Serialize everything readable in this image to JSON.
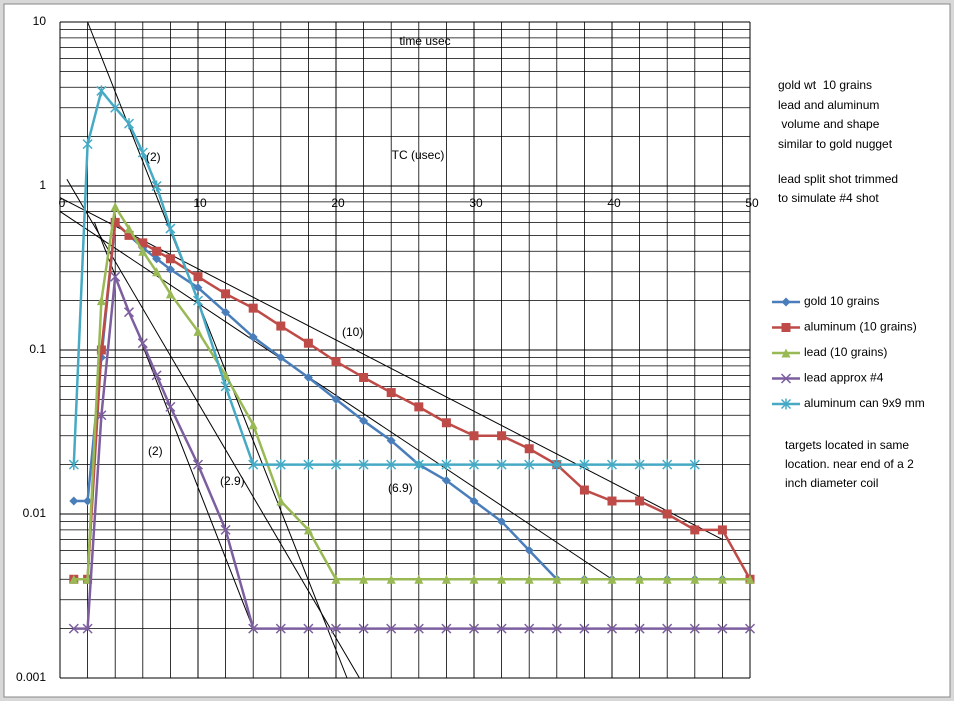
{
  "chart_data": {
    "type": "line",
    "title": "time usec",
    "x_label": "TC (usec)",
    "log_y": true,
    "grid": true,
    "legend": "right",
    "xlim": [
      0,
      50
    ],
    "ylim": [
      0.001,
      10
    ],
    "xticks": [
      0,
      10,
      20,
      30,
      40,
      50
    ],
    "yticks": [
      10,
      1,
      0.1,
      0.01,
      0.001
    ],
    "xgrid": [
      2,
      4,
      6,
      8,
      12,
      14,
      16,
      18,
      22,
      24,
      26,
      28,
      32,
      34,
      36,
      38,
      42,
      44,
      46,
      48
    ],
    "ygrid": [
      0.002,
      0.003,
      0.004,
      0.005,
      0.006,
      0.007,
      0.008,
      0.009,
      0.02,
      0.03,
      0.04,
      0.05,
      0.06,
      0.07,
      0.08,
      0.09,
      0.2,
      0.3,
      0.4,
      0.5,
      0.6,
      0.7,
      0.8,
      0.9,
      2,
      3,
      4,
      5,
      6,
      7,
      8,
      9
    ],
    "x": [
      1,
      2,
      3,
      4,
      5,
      6,
      7,
      8,
      10,
      12,
      14,
      16,
      18,
      20,
      22,
      24,
      26,
      28,
      30,
      32,
      34,
      36,
      38,
      40,
      42,
      44,
      46,
      48,
      50
    ],
    "series": [
      {
        "name": "gold 10 grains",
        "color": "#4a7ebb",
        "marker": "diamond",
        "values": [
          0.012,
          0.012,
          0.09,
          0.6,
          0.5,
          0.42,
          0.36,
          0.31,
          0.24,
          0.17,
          0.12,
          0.09,
          0.068,
          0.05,
          0.037,
          0.028,
          0.02,
          0.016,
          0.012,
          0.009,
          0.006,
          0.004,
          0.004,
          0.004,
          0.004,
          0.004,
          0.004,
          0.004,
          0.004
        ]
      },
      {
        "name": "aluminum (10 grains)",
        "color": "#be4b48",
        "marker": "square",
        "values": [
          0.004,
          0.004,
          0.1,
          0.6,
          0.5,
          0.45,
          0.4,
          0.36,
          0.28,
          0.22,
          0.18,
          0.14,
          0.11,
          0.085,
          0.068,
          0.055,
          0.045,
          0.036,
          0.03,
          0.03,
          0.025,
          0.02,
          0.014,
          0.012,
          0.012,
          0.01,
          0.008,
          0.008,
          0.004
        ]
      },
      {
        "name": "lead (10 grains)",
        "color": "#98b954",
        "marker": "triangle",
        "values": [
          0.004,
          0.004,
          0.2,
          0.75,
          0.55,
          0.4,
          0.3,
          0.22,
          0.13,
          0.07,
          0.035,
          0.012,
          0.008,
          0.004,
          0.004,
          0.004,
          0.004,
          0.004,
          0.004,
          0.004,
          0.004,
          0.004,
          0.004,
          0.004,
          0.004,
          0.004,
          0.004,
          0.004,
          0.004
        ]
      },
      {
        "name": "lead approx #4",
        "color": "#7d5fa0",
        "marker": "x",
        "values": [
          0.002,
          0.002,
          0.04,
          0.28,
          0.17,
          0.11,
          0.07,
          0.045,
          0.02,
          0.008,
          0.002,
          0.002,
          0.002,
          0.002,
          0.002,
          0.002,
          0.002,
          0.002,
          0.002,
          0.002,
          0.002,
          0.002,
          0.002,
          0.002,
          0.002,
          0.002,
          0.002,
          0.002,
          0.002
        ]
      },
      {
        "name": "aluminum can 9x9 mm",
        "color": "#46aac5",
        "marker": "star",
        "values": [
          0.02,
          1.8,
          3.8,
          3,
          2.4,
          1.6,
          1,
          0.55,
          0.2,
          0.06,
          0.02,
          0.02,
          0.02,
          0.02,
          0.02,
          0.02,
          0.02,
          0.02,
          0.02,
          0.02,
          0.02,
          0.02,
          0.02,
          0.02,
          0.02,
          0.02,
          0.02,
          null,
          null
        ]
      }
    ],
    "reference_lines": [
      {
        "x": [
          2,
          20.8
        ],
        "y": [
          10,
          0.001
        ]
      },
      {
        "x": [
          0.5,
          21.7
        ],
        "y": [
          1.1,
          0.001
        ]
      },
      {
        "x": [
          0,
          48
        ],
        "y": [
          0.85,
          0.007
        ]
      },
      {
        "x": [
          0,
          40
        ],
        "y": [
          0.7,
          0.004
        ]
      },
      {
        "x": [
          2.5,
          14
        ],
        "y": [
          0.6,
          0.002
        ]
      }
    ],
    "annotations": [
      "(2)",
      "(10)",
      "(2)",
      "(2.9)",
      "(6.9)"
    ],
    "notes": [
      "gold wt  10 grains",
      "lead and aluminum",
      " volume and shape",
      "similar to gold nugget",
      "lead split shot trimmed",
      "to simulate #4 shot",
      "targets located in same",
      "location. near end of a 2",
      "inch diameter coil"
    ]
  }
}
